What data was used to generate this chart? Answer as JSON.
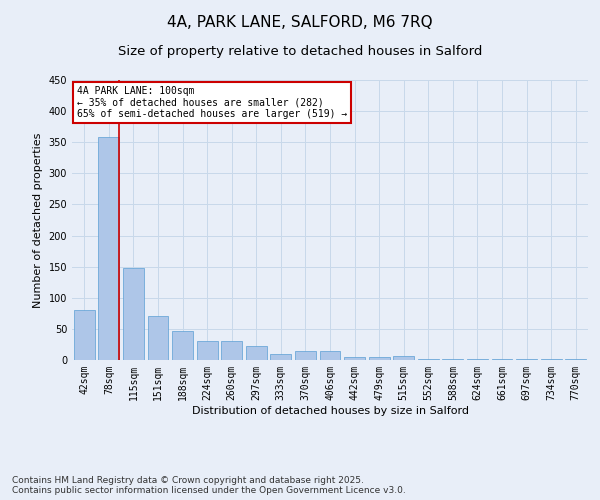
{
  "title_line1": "4A, PARK LANE, SALFORD, M6 7RQ",
  "title_line2": "Size of property relative to detached houses in Salford",
  "xlabel": "Distribution of detached houses by size in Salford",
  "ylabel": "Number of detached properties",
  "categories": [
    "42sqm",
    "78sqm",
    "115sqm",
    "151sqm",
    "188sqm",
    "224sqm",
    "260sqm",
    "297sqm",
    "333sqm",
    "370sqm",
    "406sqm",
    "442sqm",
    "479sqm",
    "515sqm",
    "552sqm",
    "588sqm",
    "624sqm",
    "661sqm",
    "697sqm",
    "734sqm",
    "770sqm"
  ],
  "values": [
    80,
    358,
    148,
    70,
    47,
    30,
    30,
    23,
    10,
    14,
    14,
    5,
    5,
    7,
    2,
    2,
    2,
    1,
    1,
    1,
    1
  ],
  "bar_color": "#aec6e8",
  "bar_edge_color": "#5a9fd4",
  "grid_color": "#c8d8ea",
  "annotation_box_color": "#cc0000",
  "annotation_text": "4A PARK LANE: 100sqm\n← 35% of detached houses are smaller (282)\n65% of semi-detached houses are larger (519) →",
  "vline_color": "#cc0000",
  "ylim": [
    0,
    450
  ],
  "yticks": [
    0,
    50,
    100,
    150,
    200,
    250,
    300,
    350,
    400,
    450
  ],
  "footnote": "Contains HM Land Registry data © Crown copyright and database right 2025.\nContains public sector information licensed under the Open Government Licence v3.0.",
  "background_color": "#e8eef8",
  "plot_bg_color": "#e8eef8",
  "title_fontsize": 11,
  "subtitle_fontsize": 9.5,
  "axis_label_fontsize": 8,
  "tick_fontsize": 7,
  "annotation_fontsize": 7,
  "footnote_fontsize": 6.5
}
